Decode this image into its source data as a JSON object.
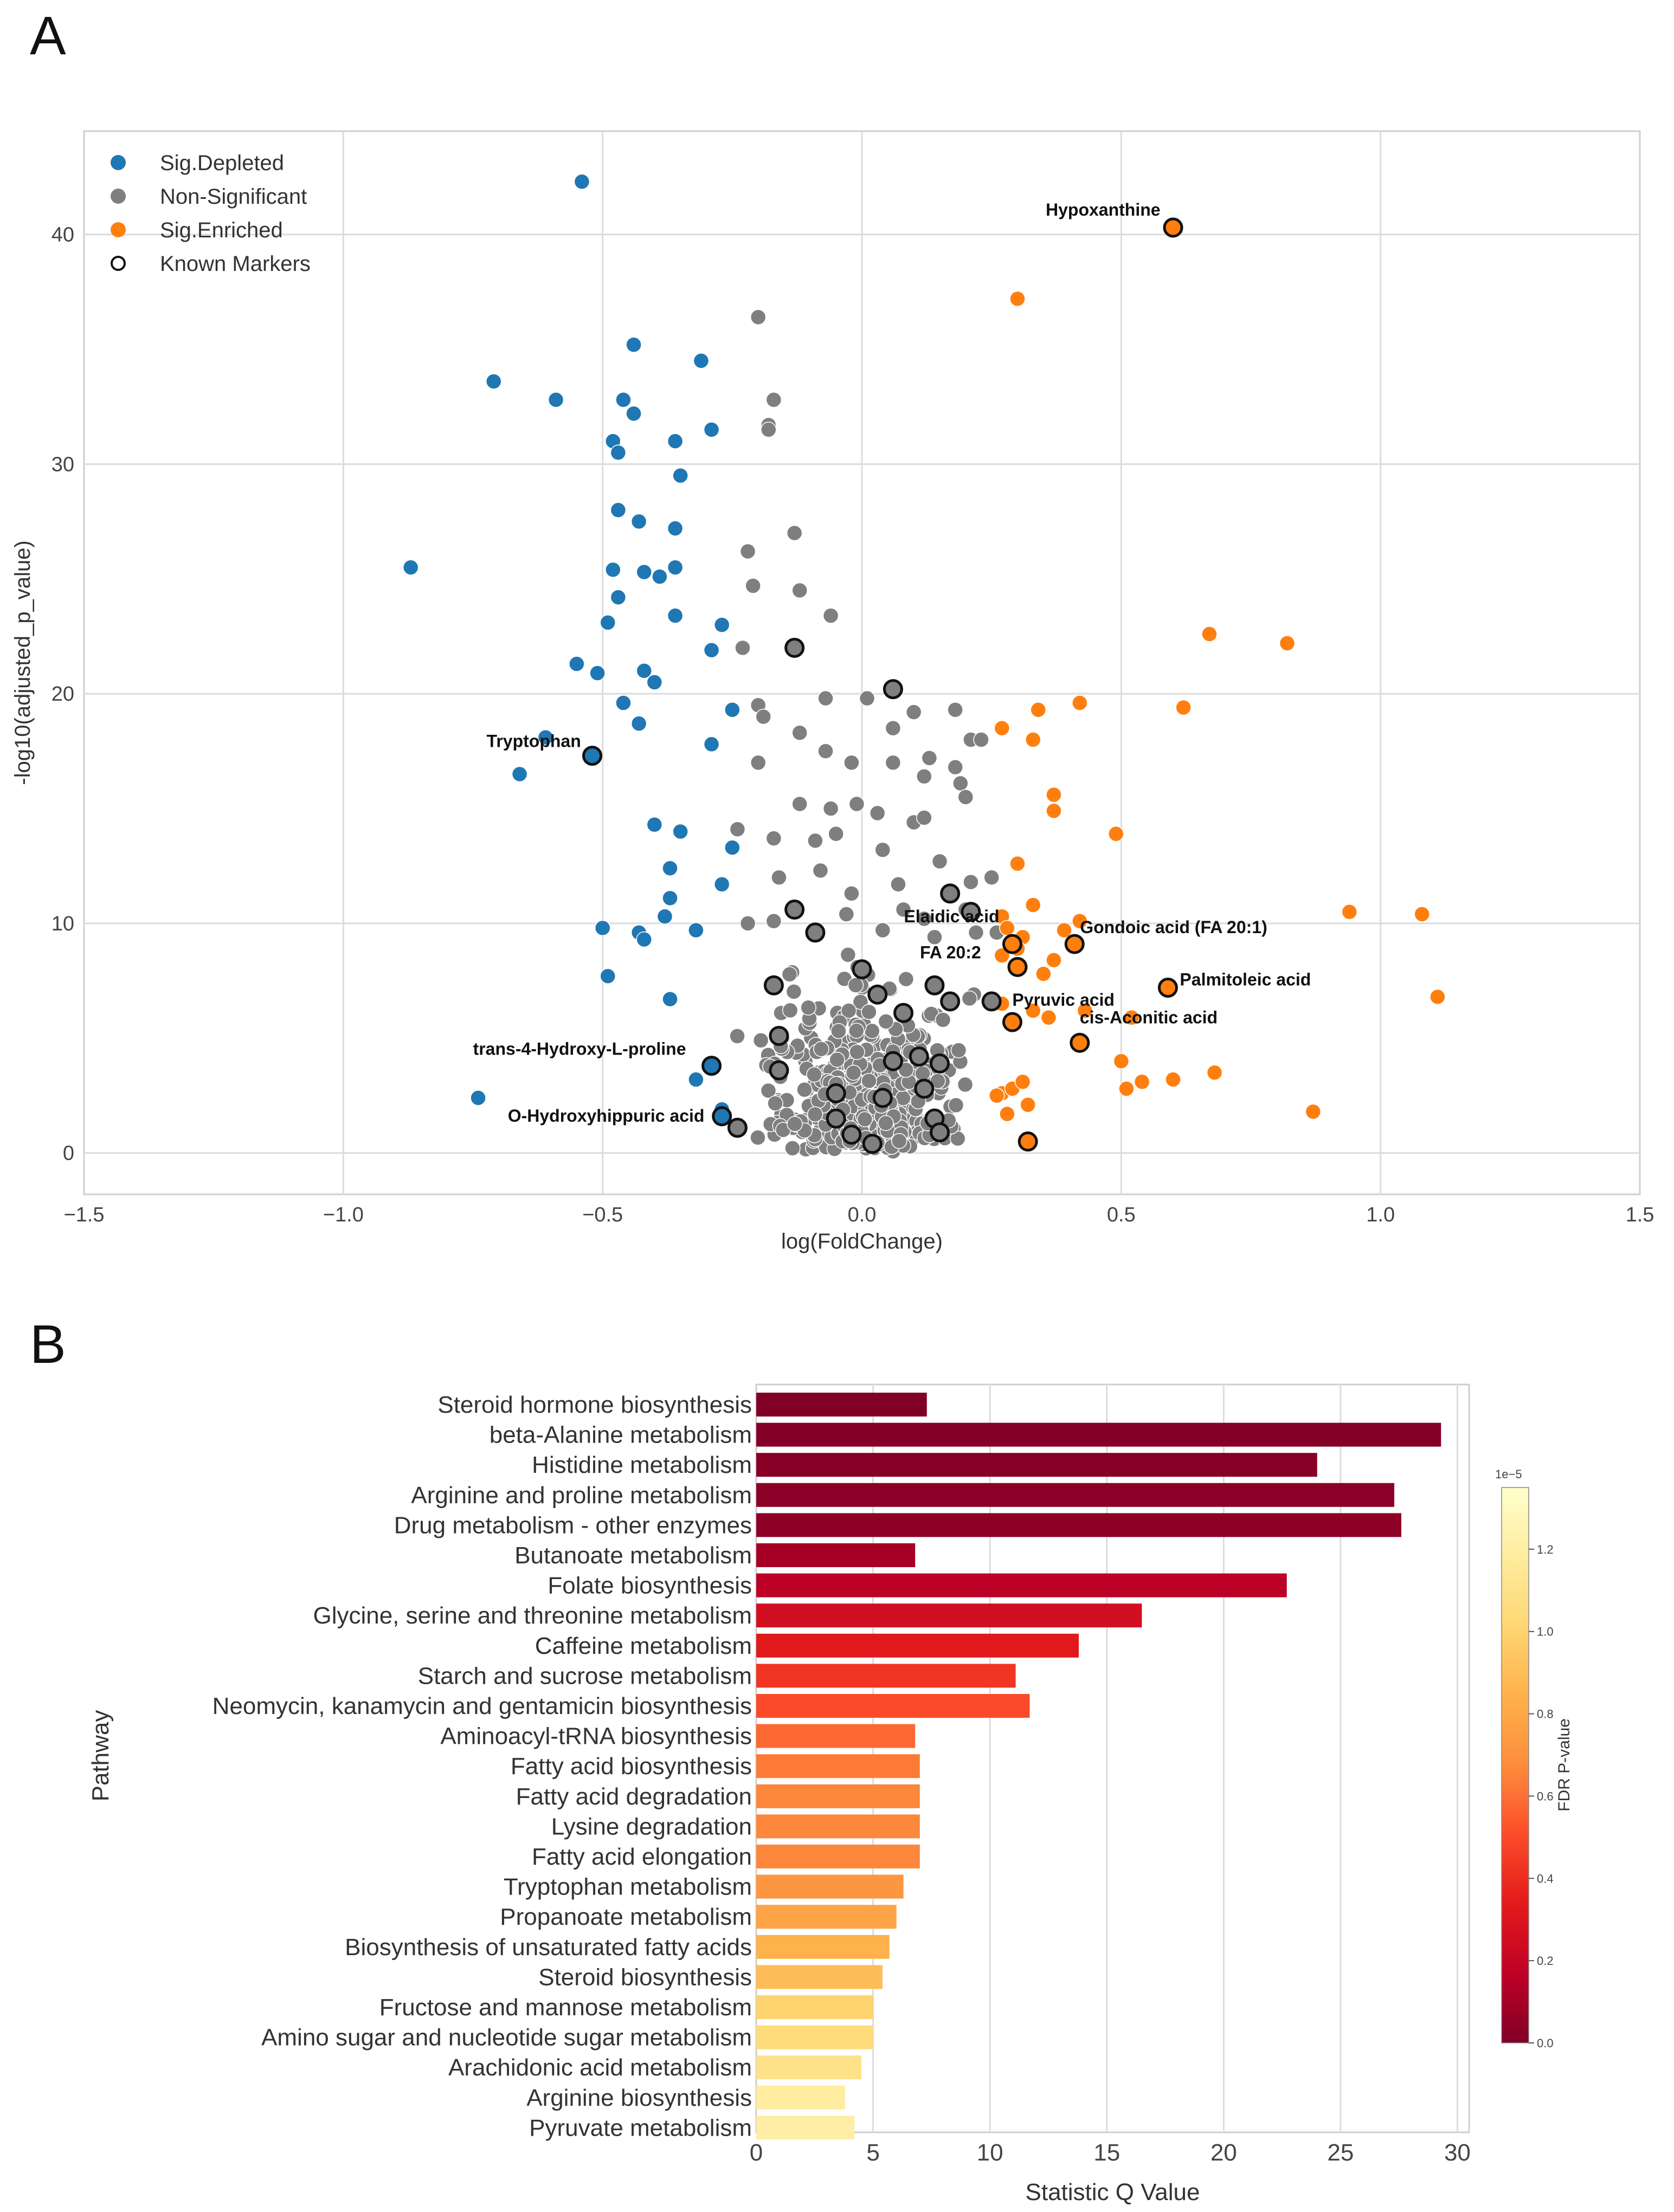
{
  "chart_data": [
    {
      "panel": "A",
      "type": "scatter",
      "title": "",
      "xlabel": "log(FoldChange)",
      "ylabel": "-log10(adjusted_p_value)",
      "xlim": [
        -1.5,
        1.5
      ],
      "ylim": [
        -1.8,
        44.5
      ],
      "xticks": [
        "-1.5",
        "-1.0",
        "-0.5",
        "0.0",
        "0.5",
        "1.0",
        "1.5"
      ],
      "yticks": [
        "0",
        "10",
        "20",
        "30",
        "40"
      ],
      "grid": true,
      "legend_position": "top-left",
      "legend": [
        "Sig.Depleted",
        "Non-Significant",
        "Sig.Enriched",
        "Known Markers"
      ],
      "colors": {
        "depleted": "#1f77b4",
        "nonsig": "#7f7f7f",
        "enriched": "#ff7f0e",
        "marker_edge": "#111111"
      },
      "series": [
        {
          "name": "Sig.Depleted",
          "points": [
            [
              -0.54,
              42.3
            ],
            [
              -0.71,
              33.6
            ],
            [
              -0.59,
              32.8
            ],
            [
              -0.44,
              35.2
            ],
            [
              -0.31,
              34.5
            ],
            [
              -0.46,
              32.8
            ],
            [
              -0.44,
              32.2
            ],
            [
              -0.29,
              31.5
            ],
            [
              -0.48,
              31.0
            ],
            [
              -0.47,
              30.5
            ],
            [
              -0.36,
              31.0
            ],
            [
              -0.35,
              29.5
            ],
            [
              -0.47,
              28.0
            ],
            [
              -0.43,
              27.5
            ],
            [
              -0.36,
              27.2
            ],
            [
              -0.87,
              25.5
            ],
            [
              -0.48,
              25.4
            ],
            [
              -0.42,
              25.3
            ],
            [
              -0.39,
              25.1
            ],
            [
              -0.36,
              25.5
            ],
            [
              -0.47,
              24.2
            ],
            [
              -0.49,
              23.1
            ],
            [
              -0.36,
              23.4
            ],
            [
              -0.27,
              23.0
            ],
            [
              -0.55,
              21.3
            ],
            [
              -0.42,
              21.0
            ],
            [
              -0.51,
              20.9
            ],
            [
              -0.4,
              20.5
            ],
            [
              -0.29,
              21.9
            ],
            [
              -0.46,
              19.6
            ],
            [
              -0.25,
              19.3
            ],
            [
              -0.43,
              18.7
            ],
            [
              -0.61,
              18.1
            ],
            [
              -0.29,
              17.8
            ],
            [
              -0.66,
              16.5
            ],
            [
              -0.4,
              14.3
            ],
            [
              -0.35,
              14.0
            ],
            [
              -0.25,
              13.3
            ],
            [
              -0.37,
              12.4
            ],
            [
              -0.37,
              11.1
            ],
            [
              -0.27,
              11.7
            ],
            [
              -0.38,
              10.3
            ],
            [
              -0.5,
              9.8
            ],
            [
              -0.43,
              9.6
            ],
            [
              -0.42,
              9.3
            ],
            [
              -0.32,
              9.7
            ],
            [
              -0.49,
              7.7
            ],
            [
              -0.37,
              6.7
            ],
            [
              -0.74,
              2.4
            ],
            [
              -0.32,
              3.2
            ],
            [
              -0.27,
              1.9
            ]
          ]
        },
        {
          "name": "Non-Significant",
          "points": [
            [
              -0.2,
              36.4
            ],
            [
              -0.17,
              32.8
            ],
            [
              -0.18,
              31.7
            ],
            [
              -0.18,
              31.5
            ],
            [
              -0.13,
              27.0
            ],
            [
              -0.22,
              26.2
            ],
            [
              -0.21,
              24.7
            ],
            [
              -0.12,
              24.5
            ],
            [
              -0.06,
              23.4
            ],
            [
              -0.23,
              22.0
            ],
            [
              -0.2,
              19.5
            ],
            [
              -0.07,
              19.8
            ],
            [
              0.01,
              19.8
            ],
            [
              0.1,
              19.2
            ],
            [
              0.18,
              19.3
            ],
            [
              0.06,
              18.5
            ],
            [
              -0.19,
              19.0
            ],
            [
              -0.12,
              18.3
            ],
            [
              -0.2,
              17.0
            ],
            [
              -0.07,
              17.5
            ],
            [
              -0.02,
              17.0
            ],
            [
              0.06,
              17.0
            ],
            [
              0.12,
              16.4
            ],
            [
              0.18,
              16.8
            ],
            [
              0.19,
              16.1
            ],
            [
              0.21,
              18.0
            ],
            [
              0.23,
              18.0
            ],
            [
              0.13,
              17.2
            ],
            [
              -0.12,
              15.2
            ],
            [
              -0.06,
              15.0
            ],
            [
              -0.01,
              15.2
            ],
            [
              0.03,
              14.8
            ],
            [
              0.1,
              14.4
            ],
            [
              0.12,
              14.6
            ],
            [
              0.2,
              15.5
            ],
            [
              -0.24,
              14.1
            ],
            [
              -0.17,
              13.7
            ],
            [
              -0.09,
              13.6
            ],
            [
              -0.05,
              13.9
            ],
            [
              0.04,
              13.2
            ],
            [
              0.15,
              12.7
            ],
            [
              0.21,
              11.8
            ],
            [
              -0.16,
              12.0
            ],
            [
              -0.08,
              12.3
            ],
            [
              0.07,
              11.7
            ],
            [
              0.25,
              12.0
            ],
            [
              -0.02,
              11.3
            ],
            [
              0.08,
              10.6
            ],
            [
              0.2,
              10.6
            ],
            [
              0.12,
              10.2
            ],
            [
              -0.22,
              10.0
            ],
            [
              -0.17,
              10.1
            ],
            [
              -0.03,
              10.4
            ],
            [
              0.04,
              9.7
            ],
            [
              0.14,
              9.4
            ],
            [
              0.22,
              9.6
            ],
            [
              0.26,
              9.6
            ]
          ]
        },
        {
          "name": "Sig.Enriched",
          "points": [
            [
              0.3,
              37.2
            ],
            [
              0.67,
              22.6
            ],
            [
              0.82,
              22.2
            ],
            [
              0.42,
              19.6
            ],
            [
              0.62,
              19.4
            ],
            [
              0.34,
              19.3
            ],
            [
              0.27,
              18.5
            ],
            [
              0.33,
              18.0
            ],
            [
              0.37,
              15.6
            ],
            [
              0.37,
              14.9
            ],
            [
              0.49,
              13.9
            ],
            [
              0.3,
              12.6
            ],
            [
              0.94,
              10.5
            ],
            [
              1.08,
              10.4
            ],
            [
              1.11,
              6.8
            ],
            [
              0.33,
              10.8
            ],
            [
              0.27,
              10.3
            ],
            [
              0.28,
              9.8
            ],
            [
              0.31,
              9.4
            ],
            [
              0.39,
              9.7
            ],
            [
              0.42,
              10.1
            ],
            [
              0.27,
              8.6
            ],
            [
              0.3,
              8.9
            ],
            [
              0.35,
              7.8
            ],
            [
              0.37,
              8.4
            ],
            [
              0.27,
              6.5
            ],
            [
              0.33,
              6.2
            ],
            [
              0.36,
              5.9
            ],
            [
              0.43,
              6.2
            ],
            [
              0.52,
              5.9
            ],
            [
              0.5,
              4.0
            ],
            [
              0.27,
              2.6
            ],
            [
              0.29,
              2.8
            ],
            [
              0.31,
              3.1
            ],
            [
              0.26,
              2.5
            ],
            [
              0.28,
              1.7
            ],
            [
              0.32,
              2.1
            ],
            [
              0.51,
              2.8
            ],
            [
              0.54,
              3.1
            ],
            [
              0.6,
              3.2
            ],
            [
              0.68,
              3.5
            ],
            [
              0.87,
              1.8
            ]
          ]
        },
        {
          "name": "Known Markers",
          "points": [
            [
              0.6,
              40.3
            ],
            [
              -0.52,
              17.3
            ],
            [
              -0.13,
              22.0
            ],
            [
              0.06,
              20.2
            ],
            [
              -0.29,
              3.8
            ],
            [
              -0.27,
              1.6
            ],
            [
              -0.24,
              1.1
            ],
            [
              0.29,
              9.1
            ],
            [
              0.41,
              9.1
            ],
            [
              0.3,
              8.1
            ],
            [
              0.59,
              7.2
            ],
            [
              0.29,
              5.7
            ],
            [
              0.42,
              4.8
            ],
            [
              0.17,
              11.3
            ],
            [
              0.21,
              10.5
            ],
            [
              -0.13,
              10.6
            ],
            [
              -0.09,
              9.6
            ],
            [
              0.0,
              8.0
            ],
            [
              -0.17,
              7.3
            ],
            [
              -0.16,
              5.1
            ],
            [
              0.08,
              6.1
            ],
            [
              0.14,
              7.3
            ],
            [
              0.17,
              6.6
            ],
            [
              0.25,
              6.6
            ],
            [
              0.03,
              6.9
            ],
            [
              -0.16,
              3.6
            ],
            [
              -0.05,
              2.6
            ],
            [
              0.06,
              4.0
            ],
            [
              0.11,
              4.2
            ],
            [
              0.15,
              3.9
            ],
            [
              -0.05,
              1.5
            ],
            [
              0.04,
              2.4
            ],
            [
              0.12,
              2.8
            ],
            [
              -0.02,
              0.8
            ],
            [
              0.02,
              0.4
            ],
            [
              0.14,
              1.5
            ],
            [
              0.15,
              0.9
            ],
            [
              0.32,
              0.5
            ]
          ]
        }
      ],
      "annotations": [
        {
          "text": "Hypoxanthine",
          "x": 0.6,
          "y": 40.3
        },
        {
          "text": "Tryptophan",
          "x": -0.52,
          "y": 17.3
        },
        {
          "text": "trans-4-Hydroxy-L-proline",
          "x": -0.29,
          "y": 3.8
        },
        {
          "text": "O-Hydroxyhippuric acid",
          "x": -0.27,
          "y": 1.6
        },
        {
          "text": "Elaidic acid",
          "x": 0.29,
          "y": 9.1
        },
        {
          "text": "Gondoic acid (FA 20:1)",
          "x": 0.41,
          "y": 9.1
        },
        {
          "text": "FA 20:2",
          "x": 0.3,
          "y": 8.1
        },
        {
          "text": "Palmitoleic acid",
          "x": 0.59,
          "y": 7.2
        },
        {
          "text": "Pyruvic acid",
          "x": 0.29,
          "y": 5.7
        },
        {
          "text": "cis-Aconitic acid",
          "x": 0.42,
          "y": 4.8
        }
      ]
    },
    {
      "panel": "B",
      "type": "bar",
      "orientation": "horizontal",
      "xlabel": "Statistic Q Value",
      "ylabel": "Pathway",
      "xlim": [
        0,
        30.5
      ],
      "xticks": [
        "0",
        "5",
        "10",
        "15",
        "20",
        "25",
        "30"
      ],
      "categories": [
        "Steroid hormone biosynthesis",
        "beta-Alanine metabolism",
        "Histidine metabolism",
        "Arginine and proline metabolism",
        "Drug metabolism - other enzymes",
        "Butanoate metabolism",
        "Folate biosynthesis",
        "Glycine, serine and threonine metabolism",
        "Caffeine metabolism",
        "Starch and sucrose metabolism",
        "Neomycin, kanamycin and gentamicin biosynthesis",
        "Aminoacyl-tRNA biosynthesis",
        "Fatty acid biosynthesis",
        "Fatty acid degradation",
        "Lysine degradation",
        "Fatty acid elongation",
        "Tryptophan metabolism",
        "Propanoate metabolism",
        "Biosynthesis of unsaturated fatty acids",
        "Steroid biosynthesis",
        "Fructose and mannose metabolism",
        "Amino sugar and nucleotide sugar metabolism",
        "Arachidonic acid metabolism",
        "Arginine biosynthesis",
        "Pyruvate metabolism"
      ],
      "values": [
        7.3,
        29.3,
        24.0,
        27.3,
        27.6,
        6.8,
        22.7,
        16.5,
        13.8,
        11.1,
        11.7,
        6.8,
        7.0,
        7.0,
        7.0,
        7.0,
        6.3,
        6.0,
        5.7,
        5.4,
        5.0,
        5.0,
        4.5,
        3.8,
        4.2
      ],
      "fdr_pvalue": [
        0.0,
        0.01,
        0.02,
        0.03,
        0.04,
        0.1,
        0.16,
        0.26,
        0.33,
        0.43,
        0.5,
        0.58,
        0.63,
        0.66,
        0.66,
        0.66,
        0.72,
        0.78,
        0.85,
        0.9,
        1.0,
        1.05,
        1.1,
        1.18,
        1.2
      ],
      "colorbar": {
        "label": "FDR P-value",
        "exponent": "1e−5",
        "range": [
          0.0,
          1.35
        ],
        "ticks": [
          "0.0",
          "0.2",
          "0.4",
          "0.6",
          "0.8",
          "1.0",
          "1.2"
        ],
        "colormap": "YlOrRd_r"
      }
    }
  ],
  "panels": {
    "a_letter": "A",
    "b_letter": "B"
  }
}
